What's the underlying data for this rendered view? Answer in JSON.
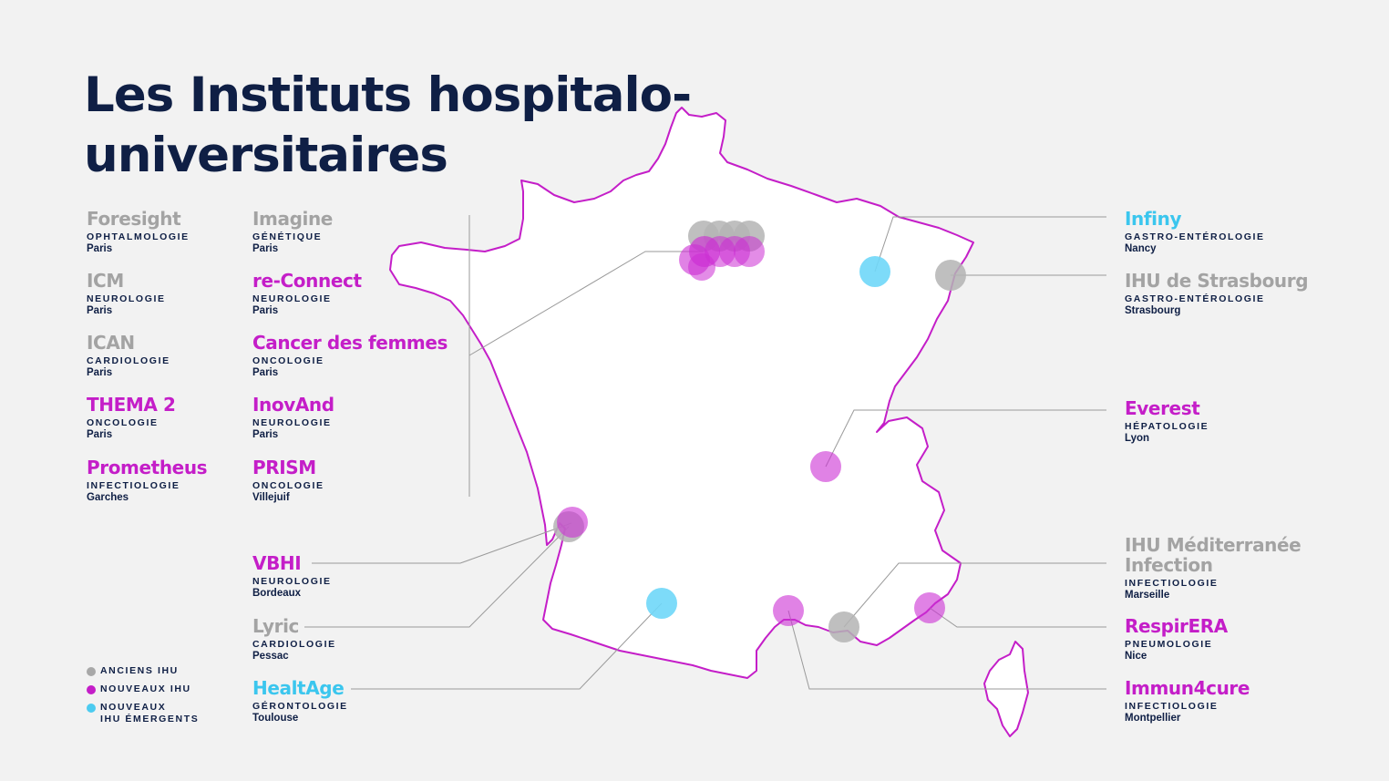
{
  "title_line1": "Les Instituts hospitalo-",
  "title_line2": "universitaires",
  "colors": {
    "old": "#b4b4b4",
    "new": "#cc2ed3",
    "emerging": "#6fd7f8",
    "outline": "#c41ec8",
    "text": "#0f1f45"
  },
  "legend": [
    {
      "label": "ANCIENS IHU",
      "color": "#a8a8a8"
    },
    {
      "label": "NOUVEAUX IHU",
      "color": "#c41ec8"
    },
    {
      "label": "NOUVEAUX",
      "label2": "IHU ÉMERGENTS",
      "color": "#4ccbf0"
    }
  ],
  "ihus": {
    "foresight": {
      "name": "Foresight",
      "spec": "OPHTALMOLOGIE",
      "city": "Paris"
    },
    "imagine": {
      "name": "Imagine",
      "spec": "GÉNÉTIQUE",
      "city": "Paris"
    },
    "icm": {
      "name": "ICM",
      "spec": "NEUROLOGIE",
      "city": "Paris"
    },
    "reconnect": {
      "name": "re-Connect",
      "spec": "NEUROLOGIE",
      "city": "Paris"
    },
    "ican": {
      "name": "ICAN",
      "spec": "CARDIOLOGIE",
      "city": "Paris"
    },
    "cancer": {
      "name": "Cancer des femmes",
      "spec": "ONCOLOGIE",
      "city": "Paris"
    },
    "thema": {
      "name": "THEMA 2",
      "spec": "ONCOLOGIE",
      "city": "Paris"
    },
    "inovand": {
      "name": "InovAnd",
      "spec": "NEUROLOGIE",
      "city": "Paris"
    },
    "prometheus": {
      "name": "Prometheus",
      "spec": "INFECTIOLOGIE",
      "city": "Garches"
    },
    "prism": {
      "name": "PRISM",
      "spec": "ONCOLOGIE",
      "city": "Villejuif"
    },
    "vbhi": {
      "name": "VBHI",
      "spec": "NEUROLOGIE",
      "city": "Bordeaux"
    },
    "lyric": {
      "name": "Lyric",
      "spec": "CARDIOLOGIE",
      "city": "Pessac"
    },
    "healtage": {
      "name": "HealtAge",
      "spec": "GÉRONTOLOGIE",
      "city": "Toulouse"
    },
    "infiny": {
      "name": "Infiny",
      "spec": "GASTRO-ENTÉROLOGIE",
      "city": "Nancy"
    },
    "strasbourg": {
      "name": "IHU de Strasbourg",
      "spec": "GASTRO-ENTÉROLOGIE",
      "city": "Strasbourg"
    },
    "everest": {
      "name": "Everest",
      "spec": "HÉPATOLOGIE",
      "city": "Lyon"
    },
    "mediterranee": {
      "name": "IHU Méditerranée",
      "name2": "Infection",
      "spec": "INFECTIOLOGIE",
      "city": "Marseille"
    },
    "respirera": {
      "name": "RespirERA",
      "spec": "PNEUMOLOGIE",
      "city": "Nice"
    },
    "immun4cure": {
      "name": "Immun4cure",
      "spec": "INFECTIOLOGIE",
      "city": "Montpellier"
    }
  }
}
